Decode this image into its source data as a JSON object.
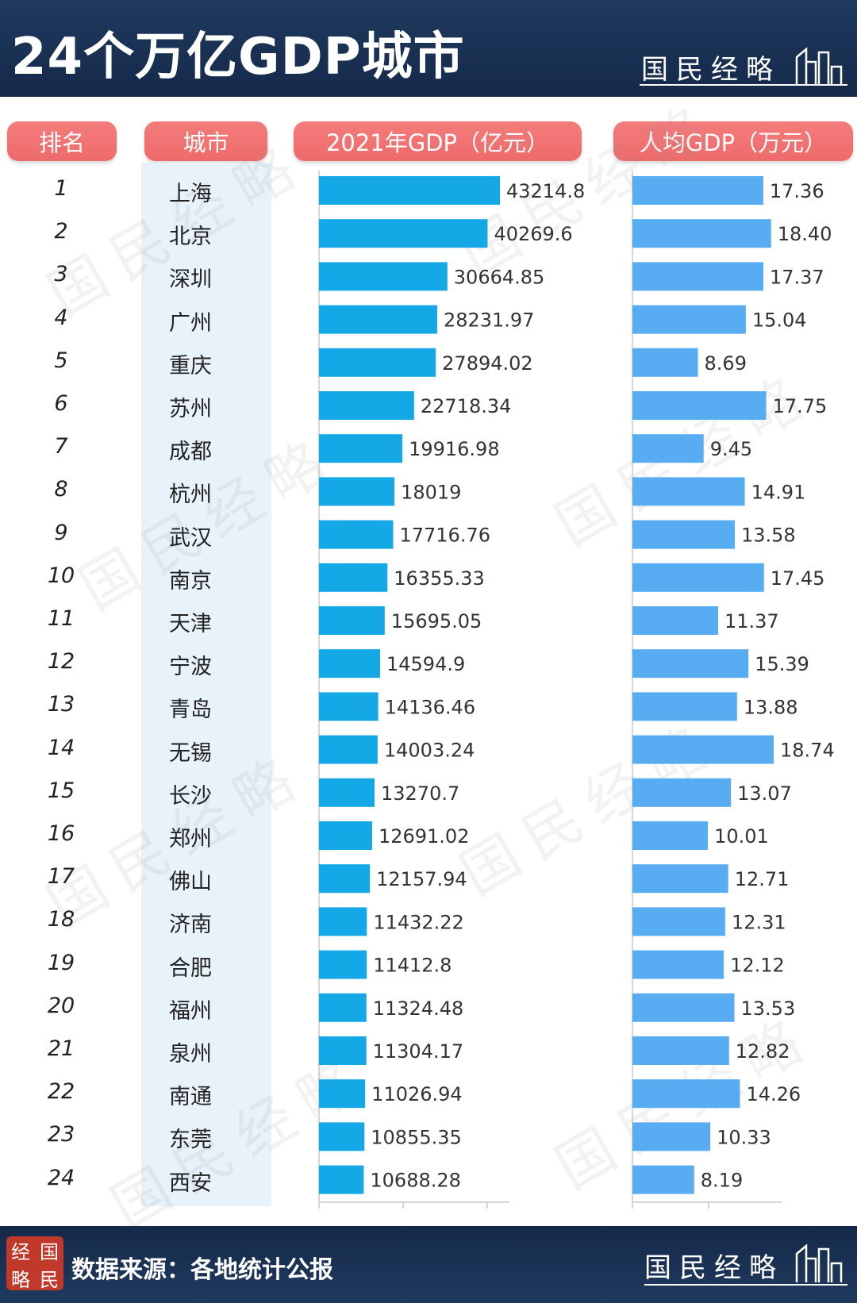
{
  "header": {
    "title": "24个万亿GDP城市",
    "brand": "国民经略"
  },
  "columns": {
    "rank": "排名",
    "city": "城市",
    "gdp": "2021年GDP（亿元）",
    "per_capita": "人均GDP（万元）"
  },
  "footer": {
    "source": "数据来源：各地统计公报",
    "brand": "国民经略",
    "logo": [
      "经",
      "国",
      "略",
      "民"
    ]
  },
  "colors": {
    "header_bg": "#1b3354",
    "pill": "#f07272",
    "bar_gdp": "#14a9e6",
    "bar_per_capita": "#58acf2",
    "city_column_bg": "#e8f2fb"
  },
  "chart_data": [
    {
      "type": "bar",
      "orientation": "horizontal",
      "title": "2021年GDP（亿元）",
      "categories": [
        "上海",
        "北京",
        "深圳",
        "广州",
        "重庆",
        "苏州",
        "成都",
        "杭州",
        "武汉",
        "南京",
        "天津",
        "宁波",
        "青岛",
        "无锡",
        "长沙",
        "郑州",
        "佛山",
        "济南",
        "合肥",
        "福州",
        "泉州",
        "南通",
        "东莞",
        "西安"
      ],
      "ranks": [
        "1",
        "2",
        "3",
        "4",
        "5",
        "6",
        "7",
        "8",
        "9",
        "10",
        "11",
        "12",
        "13",
        "14",
        "15",
        "16",
        "17",
        "18",
        "19",
        "20",
        "21",
        "22",
        "23",
        "24"
      ],
      "values": [
        43214.8,
        40269.6,
        30664.85,
        28231.97,
        27894.02,
        22718.34,
        19916.98,
        18019,
        17716.76,
        16355.33,
        15695.05,
        14594.9,
        14136.46,
        14003.24,
        13270.7,
        12691.02,
        12157.94,
        11432.22,
        11412.8,
        11324.48,
        11304.17,
        11026.94,
        10855.35,
        10688.28
      ],
      "labels": [
        "43214.8",
        "40269.6",
        "30664.85",
        "28231.97",
        "27894.02",
        "22718.34",
        "19916.98",
        "18019",
        "17716.76",
        "16355.33",
        "15695.05",
        "14594.9",
        "14136.46",
        "14003.24",
        "13270.7",
        "12691.02",
        "12157.94",
        "11432.22",
        "11412.8",
        "11324.48",
        "11304.17",
        "11026.94",
        "10855.35",
        "10688.28"
      ],
      "xlim": [
        0,
        45000
      ]
    },
    {
      "type": "bar",
      "orientation": "horizontal",
      "title": "人均GDP（万元）",
      "categories": [
        "上海",
        "北京",
        "深圳",
        "广州",
        "重庆",
        "苏州",
        "成都",
        "杭州",
        "武汉",
        "南京",
        "天津",
        "宁波",
        "青岛",
        "无锡",
        "长沙",
        "郑州",
        "佛山",
        "济南",
        "合肥",
        "福州",
        "泉州",
        "南通",
        "东莞",
        "西安"
      ],
      "values": [
        17.36,
        18.4,
        17.37,
        15.04,
        8.69,
        17.75,
        9.45,
        14.91,
        13.58,
        17.45,
        11.37,
        15.39,
        13.88,
        18.74,
        13.07,
        10.01,
        12.71,
        12.31,
        12.12,
        13.53,
        12.82,
        14.26,
        10.33,
        8.19
      ],
      "labels": [
        "17.36",
        "18.40",
        "17.37",
        "15.04",
        "8.69",
        "17.75",
        "9.45",
        "14.91",
        "13.58",
        "17.45",
        "11.37",
        "15.39",
        "13.88",
        "18.74",
        "13.07",
        "10.01",
        "12.71",
        "12.31",
        "12.12",
        "13.53",
        "12.82",
        "14.26",
        "10.33",
        "8.19"
      ],
      "xlim": [
        0,
        18.74
      ]
    }
  ]
}
